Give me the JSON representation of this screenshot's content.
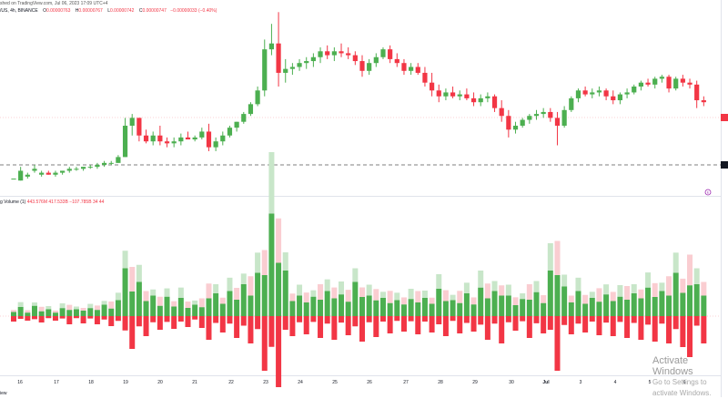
{
  "header": {
    "published": "shed on TradingView.com, Jul 06, 2023 17:09 UTC+4",
    "symbol": "/US, 4h, BINANCE",
    "o_label": "O",
    "o_val": "0.00000763",
    "h_label": "H",
    "h_val": "0.00000767",
    "l_label": "L",
    "l_val": "0.00000742",
    "c_label": "C",
    "c_val": "0.00000747",
    "change": "−0.00000033 (−0.40%)"
  },
  "volume_legend": {
    "title": "g Volume (1)",
    "v1": "443.576M",
    "v2": "417.533B",
    "v3": "−107.785B",
    "v4": "34",
    "v5": "44"
  },
  "x_axis": [
    "16",
    "17",
    "18",
    "19",
    "20",
    "21",
    "22",
    "23",
    "24",
    "25",
    "26",
    "27",
    "28",
    "29",
    "30",
    "Jul",
    "3",
    "4",
    "5",
    "6"
  ],
  "footer": {
    "left": "iew"
  },
  "watermark": {
    "line1": "Activate Windows",
    "line2": "Go to Settings to activate Windows."
  },
  "colors": {
    "up": "#4caf50",
    "down": "#f23645",
    "up_light": "#c8e6c9",
    "down_light": "#facdd1"
  },
  "badge": "E",
  "chart_data": {
    "type": "candlestick",
    "price_candles": [
      [
        0.91,
        0.91,
        0.91,
        0.91
      ],
      [
        0.9,
        0.97,
        0.9,
        0.95
      ],
      [
        0.92,
        0.94,
        0.91,
        0.93
      ],
      [
        0.95,
        0.98,
        0.94,
        0.96
      ],
      [
        0.93,
        0.95,
        0.92,
        0.94
      ],
      [
        0.94,
        0.95,
        0.93,
        0.93
      ],
      [
        0.93,
        0.95,
        0.92,
        0.94
      ],
      [
        0.94,
        0.95,
        0.93,
        0.95
      ],
      [
        0.95,
        0.97,
        0.94,
        0.96
      ],
      [
        0.96,
        0.97,
        0.95,
        0.96
      ],
      [
        0.96,
        0.97,
        0.95,
        0.97
      ],
      [
        0.97,
        0.98,
        0.96,
        0.97
      ],
      [
        0.97,
        0.99,
        0.96,
        0.98
      ],
      [
        0.98,
        1.0,
        0.97,
        0.99
      ],
      [
        0.99,
        1.0,
        0.98,
        0.99
      ],
      [
        0.99,
        1.03,
        0.99,
        1.02
      ],
      [
        1.02,
        1.22,
        1.02,
        1.18
      ],
      [
        1.18,
        1.24,
        1.13,
        1.22
      ],
      [
        1.22,
        1.22,
        1.1,
        1.13
      ],
      [
        1.13,
        1.16,
        1.09,
        1.1
      ],
      [
        1.1,
        1.15,
        1.08,
        1.13
      ],
      [
        1.13,
        1.18,
        1.08,
        1.1
      ],
      [
        1.1,
        1.12,
        1.07,
        1.09
      ],
      [
        1.09,
        1.12,
        1.07,
        1.1
      ],
      [
        1.1,
        1.14,
        1.08,
        1.12
      ],
      [
        1.12,
        1.15,
        1.11,
        1.11
      ],
      [
        1.11,
        1.13,
        1.1,
        1.12
      ],
      [
        1.12,
        1.17,
        1.11,
        1.15
      ],
      [
        1.15,
        1.19,
        1.05,
        1.07
      ],
      [
        1.07,
        1.12,
        1.05,
        1.1
      ],
      [
        1.1,
        1.15,
        1.08,
        1.13
      ],
      [
        1.13,
        1.18,
        1.12,
        1.17
      ],
      [
        1.17,
        1.2,
        1.15,
        1.2
      ],
      [
        1.2,
        1.25,
        1.19,
        1.24
      ],
      [
        1.24,
        1.3,
        1.23,
        1.29
      ],
      [
        1.29,
        1.38,
        1.28,
        1.36
      ],
      [
        1.36,
        1.62,
        1.33,
        1.57
      ],
      [
        1.57,
        1.7,
        1.54,
        1.6
      ],
      [
        1.6,
        1.76,
        1.38,
        1.45
      ],
      [
        1.45,
        1.52,
        1.4,
        1.47
      ],
      [
        1.47,
        1.5,
        1.44,
        1.48
      ],
      [
        1.48,
        1.52,
        1.46,
        1.5
      ],
      [
        1.5,
        1.53,
        1.47,
        1.51
      ],
      [
        1.51,
        1.55,
        1.48,
        1.53
      ],
      [
        1.53,
        1.58,
        1.5,
        1.56
      ],
      [
        1.56,
        1.59,
        1.52,
        1.54
      ],
      [
        1.54,
        1.58,
        1.51,
        1.56
      ],
      [
        1.56,
        1.6,
        1.53,
        1.55
      ],
      [
        1.55,
        1.58,
        1.52,
        1.54
      ],
      [
        1.54,
        1.56,
        1.49,
        1.51
      ],
      [
        1.51,
        1.54,
        1.43,
        1.46
      ],
      [
        1.46,
        1.52,
        1.44,
        1.5
      ],
      [
        1.5,
        1.55,
        1.48,
        1.53
      ],
      [
        1.53,
        1.58,
        1.52,
        1.57
      ],
      [
        1.57,
        1.59,
        1.5,
        1.52
      ],
      [
        1.52,
        1.55,
        1.48,
        1.5
      ],
      [
        1.5,
        1.52,
        1.44,
        1.46
      ],
      [
        1.46,
        1.5,
        1.44,
        1.48
      ],
      [
        1.48,
        1.5,
        1.44,
        1.45
      ],
      [
        1.45,
        1.48,
        1.38,
        1.4
      ],
      [
        1.4,
        1.45,
        1.33,
        1.36
      ],
      [
        1.36,
        1.39,
        1.3,
        1.33
      ],
      [
        1.33,
        1.37,
        1.31,
        1.35
      ],
      [
        1.35,
        1.38,
        1.32,
        1.33
      ],
      [
        1.33,
        1.36,
        1.31,
        1.34
      ],
      [
        1.34,
        1.37,
        1.31,
        1.32
      ],
      [
        1.32,
        1.35,
        1.28,
        1.3
      ],
      [
        1.3,
        1.34,
        1.28,
        1.32
      ],
      [
        1.32,
        1.35,
        1.3,
        1.33
      ],
      [
        1.33,
        1.34,
        1.25,
        1.27
      ],
      [
        1.27,
        1.31,
        1.2,
        1.23
      ],
      [
        1.23,
        1.26,
        1.12,
        1.16
      ],
      [
        1.16,
        1.2,
        1.14,
        1.18
      ],
      [
        1.18,
        1.22,
        1.17,
        1.21
      ],
      [
        1.21,
        1.24,
        1.19,
        1.23
      ],
      [
        1.23,
        1.26,
        1.21,
        1.24
      ],
      [
        1.24,
        1.27,
        1.22,
        1.25
      ],
      [
        1.25,
        1.27,
        1.2,
        1.22
      ],
      [
        1.22,
        1.25,
        1.08,
        1.18
      ],
      [
        1.18,
        1.28,
        1.17,
        1.26
      ],
      [
        1.26,
        1.33,
        1.25,
        1.32
      ],
      [
        1.32,
        1.37,
        1.3,
        1.36
      ],
      [
        1.36,
        1.38,
        1.33,
        1.34
      ],
      [
        1.34,
        1.37,
        1.32,
        1.35
      ],
      [
        1.35,
        1.38,
        1.33,
        1.36
      ],
      [
        1.36,
        1.37,
        1.31,
        1.33
      ],
      [
        1.33,
        1.36,
        1.29,
        1.31
      ],
      [
        1.31,
        1.35,
        1.29,
        1.34
      ],
      [
        1.34,
        1.37,
        1.32,
        1.35
      ],
      [
        1.35,
        1.39,
        1.34,
        1.38
      ],
      [
        1.38,
        1.41,
        1.36,
        1.4
      ],
      [
        1.4,
        1.42,
        1.38,
        1.39
      ],
      [
        1.39,
        1.43,
        1.37,
        1.42
      ],
      [
        1.42,
        1.44,
        1.4,
        1.43
      ],
      [
        1.43,
        1.44,
        1.35,
        1.37
      ],
      [
        1.37,
        1.43,
        1.36,
        1.42
      ],
      [
        1.42,
        1.44,
        1.38,
        1.4
      ],
      [
        1.4,
        1.42,
        1.37,
        1.39
      ],
      [
        1.39,
        1.41,
        1.27,
        1.31
      ],
      [
        1.31,
        1.33,
        1.28,
        1.3
      ]
    ],
    "volume": [
      [
        6,
        0
      ],
      [
        8,
        1
      ],
      [
        5,
        0
      ],
      [
        9,
        1
      ],
      [
        7,
        0
      ],
      [
        6,
        1
      ],
      [
        5,
        0
      ],
      [
        7,
        1
      ],
      [
        9,
        0
      ],
      [
        6,
        1
      ],
      [
        8,
        0
      ],
      [
        7,
        1
      ],
      [
        9,
        0
      ],
      [
        10,
        1
      ],
      [
        11,
        0
      ],
      [
        14,
        1
      ],
      [
        42,
        1
      ],
      [
        36,
        0
      ],
      [
        30,
        1
      ],
      [
        22,
        0
      ],
      [
        18,
        1
      ],
      [
        15,
        0
      ],
      [
        17,
        1
      ],
      [
        14,
        0
      ],
      [
        16,
        1
      ],
      [
        12,
        0
      ],
      [
        10,
        1
      ],
      [
        13,
        0
      ],
      [
        26,
        0
      ],
      [
        20,
        1
      ],
      [
        18,
        0
      ],
      [
        22,
        1
      ],
      [
        24,
        0
      ],
      [
        28,
        1
      ],
      [
        30,
        0
      ],
      [
        38,
        1
      ],
      [
        60,
        0
      ],
      [
        90,
        1
      ],
      [
        78,
        0
      ],
      [
        40,
        1
      ],
      [
        22,
        0
      ],
      [
        18,
        1
      ],
      [
        20,
        0
      ],
      [
        17,
        1
      ],
      [
        24,
        0
      ],
      [
        22,
        1
      ],
      [
        26,
        0
      ],
      [
        19,
        1
      ],
      [
        21,
        0
      ],
      [
        30,
        1
      ],
      [
        28,
        0
      ],
      [
        18,
        1
      ],
      [
        23,
        0
      ],
      [
        16,
        1
      ],
      [
        19,
        0
      ],
      [
        14,
        1
      ],
      [
        17,
        0
      ],
      [
        15,
        1
      ],
      [
        20,
        0
      ],
      [
        16,
        1
      ],
      [
        18,
        0
      ],
      [
        24,
        1
      ],
      [
        22,
        0
      ],
      [
        14,
        1
      ],
      [
        19,
        0
      ],
      [
        20,
        1
      ],
      [
        17,
        0
      ],
      [
        25,
        1
      ],
      [
        26,
        0
      ],
      [
        22,
        1
      ],
      [
        30,
        0
      ],
      [
        18,
        1
      ],
      [
        16,
        0
      ],
      [
        15,
        1
      ],
      [
        24,
        0
      ],
      [
        21,
        1
      ],
      [
        19,
        0
      ],
      [
        40,
        1
      ],
      [
        60,
        0
      ],
      [
        26,
        1
      ],
      [
        20,
        0
      ],
      [
        22,
        1
      ],
      [
        18,
        0
      ],
      [
        16,
        1
      ],
      [
        21,
        0
      ],
      [
        19,
        1
      ],
      [
        22,
        0
      ],
      [
        17,
        1
      ],
      [
        24,
        0
      ],
      [
        20,
        1
      ],
      [
        26,
        0
      ],
      [
        25,
        1
      ],
      [
        28,
        0
      ],
      [
        22,
        1
      ],
      [
        30,
        0
      ],
      [
        38,
        1
      ],
      [
        34,
        0
      ],
      [
        45,
        0
      ],
      [
        28,
        1
      ],
      [
        30,
        0
      ]
    ]
  }
}
